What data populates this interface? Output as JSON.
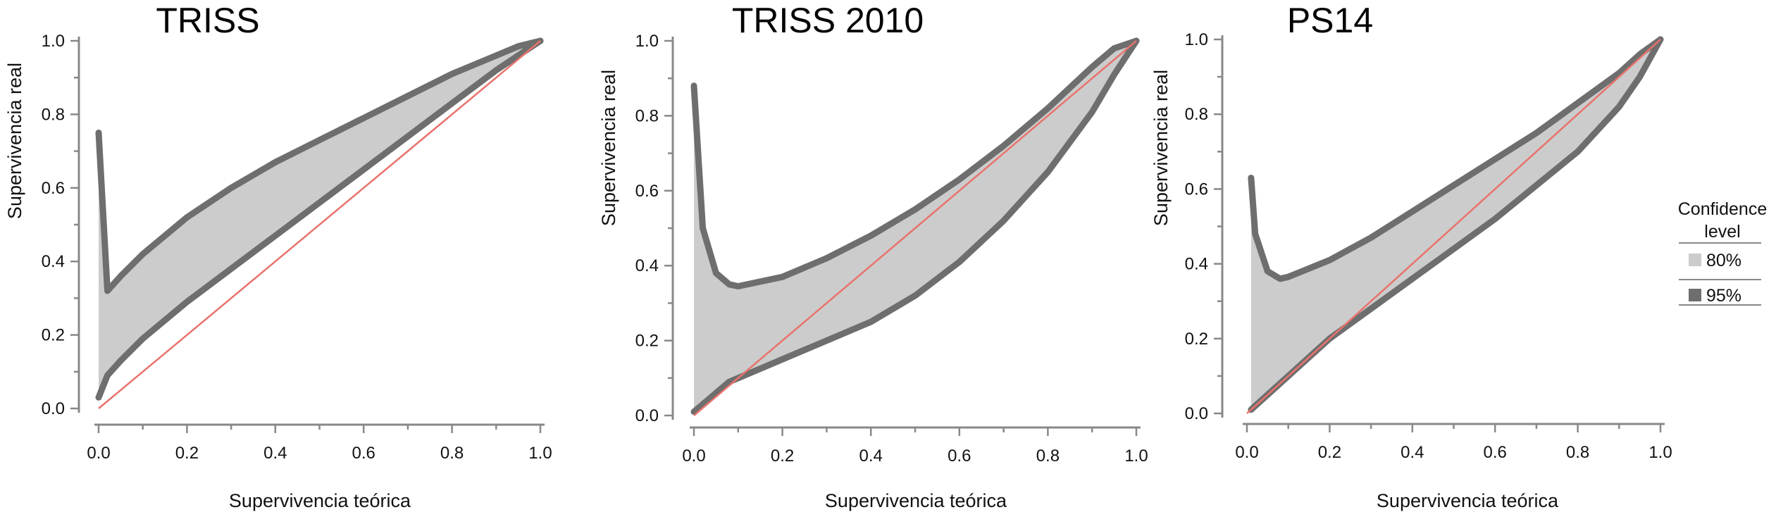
{
  "chart_data": [
    {
      "type": "area",
      "title": "TRISS",
      "xlabel": "Supervivencia teórica",
      "ylabel": "Supervivencia real",
      "xlim": [
        0,
        1
      ],
      "ylim": [
        0,
        1
      ],
      "xticks": [
        "0.0",
        "0.2",
        "0.4",
        "0.6",
        "0.8",
        "1.0"
      ],
      "yticks": [
        "0.0",
        "0.2",
        "0.4",
        "0.6",
        "0.8",
        "1.0"
      ],
      "series": [
        {
          "name": "80%",
          "x": [
            0.0,
            0.02,
            0.05,
            0.1,
            0.2,
            0.3,
            0.4,
            0.5,
            0.6,
            0.7,
            0.8,
            0.9,
            0.95,
            1.0
          ],
          "upper": [
            0.75,
            0.32,
            0.36,
            0.42,
            0.52,
            0.6,
            0.67,
            0.73,
            0.79,
            0.85,
            0.91,
            0.96,
            0.985,
            1.0
          ],
          "lower": [
            0.03,
            0.09,
            0.13,
            0.19,
            0.29,
            0.38,
            0.47,
            0.56,
            0.65,
            0.74,
            0.83,
            0.92,
            0.96,
            1.0
          ]
        }
      ],
      "reference_line": {
        "x": [
          0,
          1
        ],
        "y": [
          0,
          1
        ]
      }
    },
    {
      "type": "area",
      "title": "TRISS 2010",
      "xlabel": "Supervivencia teórica",
      "ylabel": "Supervivencia real",
      "xlim": [
        0,
        1
      ],
      "ylim": [
        0,
        1
      ],
      "xticks": [
        "0.0",
        "0.2",
        "0.4",
        "0.6",
        "0.8",
        "1.0"
      ],
      "yticks": [
        "0.0",
        "0.2",
        "0.4",
        "0.6",
        "0.8",
        "1.0"
      ],
      "series": [
        {
          "name": "80%",
          "x": [
            0.0,
            0.02,
            0.05,
            0.08,
            0.1,
            0.2,
            0.3,
            0.4,
            0.5,
            0.6,
            0.7,
            0.8,
            0.9,
            0.95,
            1.0
          ],
          "upper": [
            0.88,
            0.5,
            0.38,
            0.35,
            0.345,
            0.37,
            0.42,
            0.48,
            0.55,
            0.63,
            0.72,
            0.82,
            0.93,
            0.98,
            1.0
          ],
          "lower": [
            0.01,
            0.03,
            0.06,
            0.09,
            0.1,
            0.15,
            0.2,
            0.25,
            0.32,
            0.41,
            0.52,
            0.65,
            0.81,
            0.91,
            1.0
          ]
        }
      ],
      "reference_line": {
        "x": [
          0,
          1
        ],
        "y": [
          0,
          1
        ]
      }
    },
    {
      "type": "area",
      "title": "PS14",
      "xlabel": "Supervivencia teórica",
      "ylabel": "Supervivencia real",
      "xlim": [
        0,
        1
      ],
      "ylim": [
        0,
        1
      ],
      "xticks": [
        "0.0",
        "0.2",
        "0.4",
        "0.6",
        "0.8",
        "1.0"
      ],
      "yticks": [
        "0.0",
        "0.2",
        "0.4",
        "0.6",
        "0.8",
        "1.0"
      ],
      "series": [
        {
          "name": "80%",
          "x": [
            0.01,
            0.02,
            0.05,
            0.08,
            0.1,
            0.2,
            0.3,
            0.4,
            0.5,
            0.6,
            0.7,
            0.8,
            0.9,
            0.95,
            1.0
          ],
          "upper": [
            0.63,
            0.48,
            0.38,
            0.36,
            0.365,
            0.41,
            0.47,
            0.54,
            0.61,
            0.68,
            0.75,
            0.83,
            0.91,
            0.96,
            1.0
          ],
          "lower": [
            0.01,
            0.02,
            0.05,
            0.08,
            0.1,
            0.2,
            0.28,
            0.36,
            0.44,
            0.52,
            0.61,
            0.7,
            0.82,
            0.9,
            1.0
          ]
        }
      ],
      "reference_line": {
        "x": [
          0,
          1
        ],
        "y": [
          0,
          1
        ]
      }
    }
  ],
  "legend": {
    "title_line1": "Confidence",
    "title_line2": "level",
    "position": "right",
    "items": [
      {
        "label": "80%",
        "color": "#cccccc"
      },
      {
        "label": "95%",
        "color": "#6e6e6e"
      }
    ]
  },
  "colors": {
    "band_80": "#cccccc",
    "band_95": "#6e6e6e",
    "reference_line": "#e8736c",
    "axis": "#888888"
  }
}
